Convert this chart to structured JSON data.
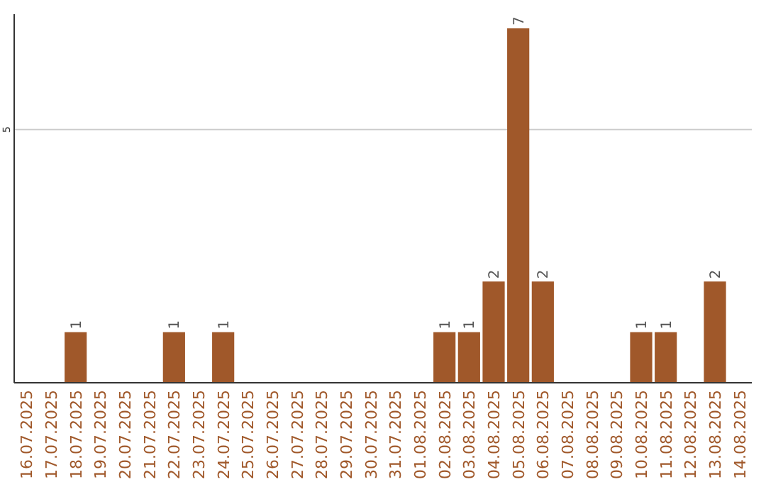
{
  "chart_data": {
    "type": "bar",
    "categories": [
      "16.07.2025",
      "17.07.2025",
      "18.07.2025",
      "19.07.2025",
      "20.07.2025",
      "21.07.2025",
      "22.07.2025",
      "23.07.2025",
      "24.07.2025",
      "25.07.2025",
      "26.07.2025",
      "27.07.2025",
      "28.07.2025",
      "29.07.2025",
      "30.07.2025",
      "31.07.2025",
      "01.08.2025",
      "02.08.2025",
      "03.08.2025",
      "04.08.2025",
      "05.08.2025",
      "06.08.2025",
      "07.08.2025",
      "08.08.2025",
      "09.08.2025",
      "10.08.2025",
      "11.08.2025",
      "12.08.2025",
      "13.08.2025",
      "14.08.2025"
    ],
    "values": [
      0,
      0,
      1,
      0,
      0,
      0,
      1,
      0,
      1,
      0,
      0,
      0,
      0,
      0,
      0,
      0,
      0,
      1,
      1,
      2,
      7,
      2,
      0,
      0,
      0,
      1,
      1,
      0,
      2,
      0
    ],
    "value_labels": [
      null,
      null,
      "1",
      null,
      null,
      null,
      "1",
      null,
      "1",
      null,
      null,
      null,
      null,
      null,
      null,
      null,
      null,
      "1",
      "1",
      "2",
      "7",
      "2",
      null,
      null,
      null,
      "1",
      "1",
      null,
      "2",
      null
    ],
    "color": "#a0582a",
    "ylim": [
      0,
      7
    ],
    "yticks": [
      5
    ],
    "grid": "y"
  }
}
